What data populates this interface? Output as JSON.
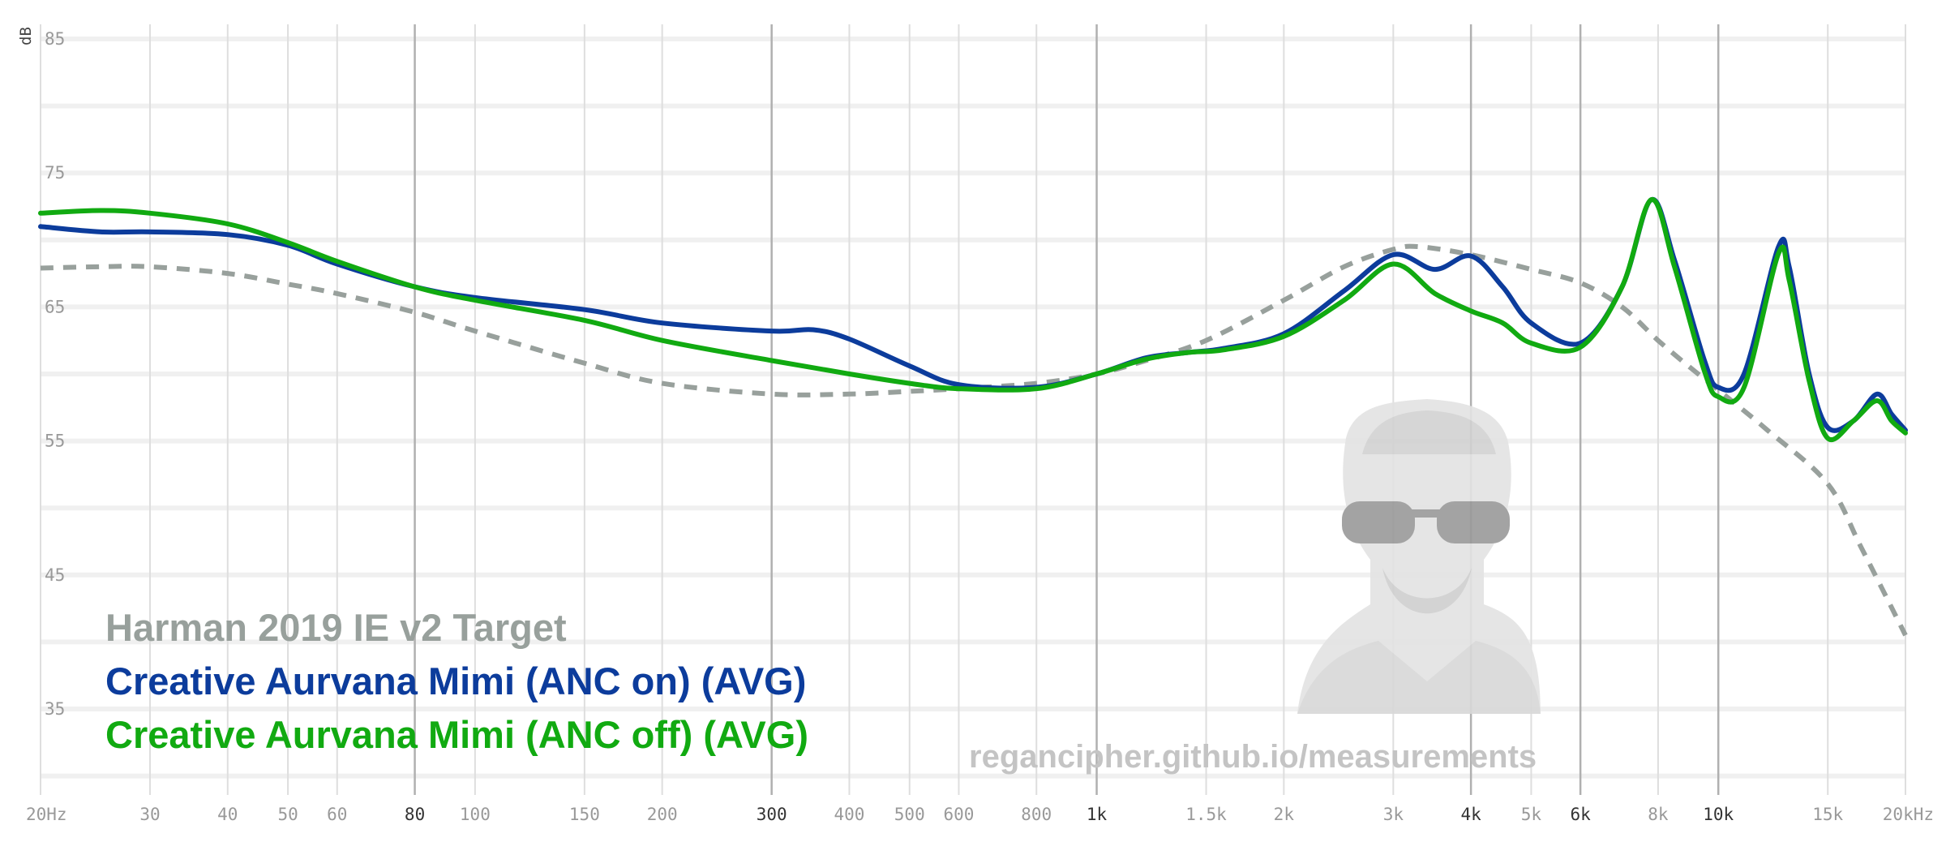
{
  "chart_data": {
    "type": "line",
    "xscale": "log",
    "xlim": [
      20,
      20000
    ],
    "ylim": [
      30,
      85
    ],
    "ylabel": "dB",
    "grid": true,
    "legend_position": "bottom-left",
    "x_ticks": [
      {
        "v": 20,
        "label": "20Hz",
        "major": false
      },
      {
        "v": 30,
        "label": "30",
        "major": false
      },
      {
        "v": 40,
        "label": "40",
        "major": false
      },
      {
        "v": 50,
        "label": "50",
        "major": false
      },
      {
        "v": 60,
        "label": "60",
        "major": false
      },
      {
        "v": 80,
        "label": "80",
        "major": true
      },
      {
        "v": 100,
        "label": "100",
        "major": false
      },
      {
        "v": 150,
        "label": "150",
        "major": false
      },
      {
        "v": 200,
        "label": "200",
        "major": false
      },
      {
        "v": 300,
        "label": "300",
        "major": true
      },
      {
        "v": 400,
        "label": "400",
        "major": false
      },
      {
        "v": 500,
        "label": "500",
        "major": false
      },
      {
        "v": 600,
        "label": "600",
        "major": false
      },
      {
        "v": 800,
        "label": "800",
        "major": false
      },
      {
        "v": 1000,
        "label": "1k",
        "major": true
      },
      {
        "v": 1500,
        "label": "1.5k",
        "major": false
      },
      {
        "v": 2000,
        "label": "2k",
        "major": false
      },
      {
        "v": 3000,
        "label": "3k",
        "major": false
      },
      {
        "v": 4000,
        "label": "4k",
        "major": true
      },
      {
        "v": 5000,
        "label": "5k",
        "major": false
      },
      {
        "v": 6000,
        "label": "6k",
        "major": true
      },
      {
        "v": 8000,
        "label": "8k",
        "major": false
      },
      {
        "v": 10000,
        "label": "10k",
        "major": true
      },
      {
        "v": 15000,
        "label": "15k",
        "major": false
      },
      {
        "v": 20000,
        "label": "20kHz",
        "major": false
      }
    ],
    "y_ticks": [
      85,
      75,
      65,
      55,
      45,
      35
    ],
    "y_minor_ticks": [
      80,
      70,
      60,
      50,
      40,
      30
    ],
    "series": [
      {
        "name": "Harman 2019 IE v2 Target",
        "color": "#98a09c",
        "dashed": true,
        "points": [
          [
            20,
            67.9
          ],
          [
            25,
            68.0
          ],
          [
            30,
            68.0
          ],
          [
            40,
            67.5
          ],
          [
            50,
            66.7
          ],
          [
            60,
            66.0
          ],
          [
            80,
            64.6
          ],
          [
            100,
            63.2
          ],
          [
            150,
            60.8
          ],
          [
            200,
            59.3
          ],
          [
            300,
            58.5
          ],
          [
            400,
            58.5
          ],
          [
            500,
            58.7
          ],
          [
            600,
            58.9
          ],
          [
            800,
            59.3
          ],
          [
            1000,
            60.0
          ],
          [
            1200,
            61.0
          ],
          [
            1500,
            62.5
          ],
          [
            2000,
            65.5
          ],
          [
            2500,
            68.0
          ],
          [
            3000,
            69.3
          ],
          [
            3300,
            69.5
          ],
          [
            4000,
            68.9
          ],
          [
            5000,
            67.8
          ],
          [
            6000,
            66.8
          ],
          [
            7000,
            65.0
          ],
          [
            8000,
            62.5
          ],
          [
            9000,
            60.5
          ],
          [
            10000,
            58.8
          ],
          [
            12000,
            55.8
          ],
          [
            15000,
            51.8
          ],
          [
            17000,
            47.0
          ],
          [
            20000,
            40.5
          ]
        ]
      },
      {
        "name": "Creative Aurvana Mimi (ANC on) (AVG)",
        "color": "#0c3c9c",
        "dashed": false,
        "points": [
          [
            20,
            71.0
          ],
          [
            25,
            70.6
          ],
          [
            30,
            70.6
          ],
          [
            40,
            70.4
          ],
          [
            50,
            69.6
          ],
          [
            60,
            68.2
          ],
          [
            80,
            66.5
          ],
          [
            100,
            65.7
          ],
          [
            150,
            64.8
          ],
          [
            200,
            63.8
          ],
          [
            300,
            63.2
          ],
          [
            350,
            63.3
          ],
          [
            400,
            62.6
          ],
          [
            500,
            60.6
          ],
          [
            600,
            59.2
          ],
          [
            800,
            59.0
          ],
          [
            1000,
            60.0
          ],
          [
            1200,
            61.2
          ],
          [
            1400,
            61.6
          ],
          [
            1600,
            61.9
          ],
          [
            2000,
            63.0
          ],
          [
            2500,
            66.2
          ],
          [
            3000,
            68.9
          ],
          [
            3500,
            67.8
          ],
          [
            4000,
            68.8
          ],
          [
            4500,
            66.5
          ],
          [
            5000,
            63.8
          ],
          [
            6000,
            62.3
          ],
          [
            7000,
            66.5
          ],
          [
            7800,
            73.0
          ],
          [
            8500,
            68.5
          ],
          [
            9500,
            61.0
          ],
          [
            10000,
            59.0
          ],
          [
            11000,
            60.0
          ],
          [
            12500,
            69.5
          ],
          [
            13000,
            68.0
          ],
          [
            14000,
            60.0
          ],
          [
            15000,
            56.0
          ],
          [
            16500,
            56.5
          ],
          [
            18000,
            58.5
          ],
          [
            19000,
            57.0
          ],
          [
            20000,
            55.8
          ]
        ]
      },
      {
        "name": "Creative Aurvana Mimi (ANC off) (AVG)",
        "color": "#11aa11",
        "dashed": false,
        "points": [
          [
            20,
            72.0
          ],
          [
            25,
            72.2
          ],
          [
            30,
            72.0
          ],
          [
            40,
            71.2
          ],
          [
            50,
            69.8
          ],
          [
            60,
            68.4
          ],
          [
            80,
            66.5
          ],
          [
            100,
            65.5
          ],
          [
            150,
            64.0
          ],
          [
            200,
            62.5
          ],
          [
            300,
            61.0
          ],
          [
            400,
            60.0
          ],
          [
            500,
            59.3
          ],
          [
            600,
            58.9
          ],
          [
            800,
            58.9
          ],
          [
            1000,
            60.0
          ],
          [
            1200,
            61.1
          ],
          [
            1400,
            61.6
          ],
          [
            1600,
            61.8
          ],
          [
            2000,
            62.8
          ],
          [
            2500,
            65.5
          ],
          [
            3000,
            68.2
          ],
          [
            3500,
            66.0
          ],
          [
            4000,
            64.7
          ],
          [
            4500,
            63.8
          ],
          [
            5000,
            62.3
          ],
          [
            6000,
            62.0
          ],
          [
            7000,
            66.5
          ],
          [
            7800,
            73.0
          ],
          [
            8500,
            68.0
          ],
          [
            9500,
            60.2
          ],
          [
            10000,
            58.3
          ],
          [
            11000,
            59.0
          ],
          [
            12500,
            69.0
          ],
          [
            13000,
            67.0
          ],
          [
            14000,
            59.5
          ],
          [
            15000,
            55.2
          ],
          [
            16500,
            56.5
          ],
          [
            18000,
            58.0
          ],
          [
            19000,
            56.5
          ],
          [
            20000,
            55.6
          ]
        ]
      }
    ]
  },
  "watermark": {
    "url": "regancipher.github.io/measurements"
  }
}
